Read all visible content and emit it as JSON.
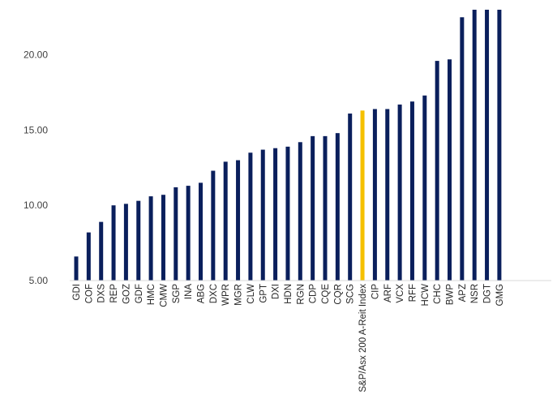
{
  "colors": {
    "bar": "#0a1f5c",
    "highlight": "#f5c000",
    "axis": "#d9d9d9",
    "text": "#404040"
  },
  "chart_data": {
    "type": "bar",
    "title": "",
    "xlabel": "",
    "ylabel": "",
    "ylim": [
      5,
      23
    ],
    "yticks": [
      "5.00",
      "10.00",
      "15.00",
      "20.00"
    ],
    "yticks_values": [
      5,
      10,
      15,
      20
    ],
    "grid": false,
    "highlight_category": "S&P/Asx 200 A-Reit Index",
    "categories": [
      "GDI",
      "COF",
      "DXS",
      "REP",
      "GOZ",
      "GDF",
      "HMC",
      "CMW",
      "SGP",
      "INA",
      "ABG",
      "DXC",
      "WPR",
      "MGR",
      "CLW",
      "GPT",
      "DXI",
      "HDN",
      "RGN",
      "CDP",
      "CQE",
      "CQR",
      "SCG",
      "S&P/Asx 200 A-Reit Index",
      "CIP",
      "ARF",
      "VCX",
      "RFF",
      "HCW",
      "CHC",
      "BWP",
      "APZ",
      "NSR",
      "DGT",
      "GMG"
    ],
    "values": [
      6.6,
      8.2,
      8.9,
      10.0,
      10.1,
      10.3,
      10.6,
      10.7,
      11.2,
      11.3,
      11.5,
      12.3,
      12.9,
      13.0,
      13.5,
      13.7,
      13.8,
      13.9,
      14.2,
      14.6,
      14.6,
      14.8,
      16.1,
      16.3,
      16.4,
      16.4,
      16.7,
      16.9,
      17.3,
      19.6,
      19.7,
      22.5,
      23.0,
      23.0,
      23.0
    ]
  }
}
